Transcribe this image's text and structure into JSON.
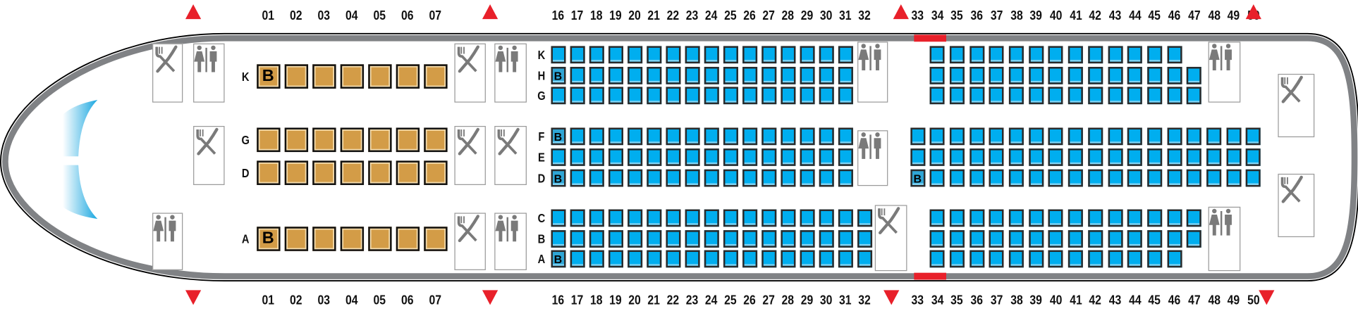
{
  "colors": {
    "economy_seat": "#00aeef",
    "business_seat": "#d39c47",
    "exit": "#e8202a",
    "fuselage": "#808285",
    "windshield": "#1aa7e0"
  },
  "column_labels": {
    "business": [
      "01",
      "02",
      "03",
      "04",
      "05",
      "06",
      "07"
    ],
    "economy_forward": [
      "16",
      "17",
      "18",
      "19",
      "20",
      "21",
      "22",
      "23",
      "24",
      "25",
      "26",
      "27",
      "28",
      "29",
      "30",
      "31",
      "32"
    ],
    "economy_rear": [
      "33",
      "34",
      "35",
      "36",
      "37",
      "38",
      "39",
      "40",
      "41",
      "42",
      "43",
      "44",
      "45",
      "46",
      "47",
      "48",
      "49",
      "50"
    ]
  },
  "bassinet_mark": "B",
  "business": {
    "rows": [
      {
        "letter": "K",
        "from": 1,
        "to": 7,
        "bassinet": [
          1
        ]
      },
      {
        "letter": "G",
        "from": 1,
        "to": 7,
        "bassinet": []
      },
      {
        "letter": "D",
        "from": 1,
        "to": 7,
        "bassinet": []
      },
      {
        "letter": "A",
        "from": 1,
        "to": 7,
        "bassinet": [
          1
        ]
      }
    ]
  },
  "economy_forward": {
    "rows": [
      {
        "letter": "K",
        "from": 16,
        "to": 31,
        "bassinet": []
      },
      {
        "letter": "H",
        "from": 16,
        "to": 31,
        "bassinet": [
          16
        ]
      },
      {
        "letter": "G",
        "from": 16,
        "to": 31,
        "bassinet": []
      },
      {
        "letter": "F",
        "from": 16,
        "to": 31,
        "bassinet": [
          16
        ]
      },
      {
        "letter": "E",
        "from": 16,
        "to": 31,
        "bassinet": []
      },
      {
        "letter": "D",
        "from": 16,
        "to": 31,
        "bassinet": [
          16
        ]
      },
      {
        "letter": "C",
        "from": 16,
        "to": 32,
        "bassinet": []
      },
      {
        "letter": "B",
        "from": 16,
        "to": 32,
        "bassinet": []
      },
      {
        "letter": "A",
        "from": 16,
        "to": 32,
        "bassinet": [
          16
        ]
      }
    ]
  },
  "economy_rear": {
    "rows": [
      {
        "from": 34,
        "to": 46,
        "bassinet": []
      },
      {
        "from": 34,
        "to": 47,
        "bassinet": []
      },
      {
        "from": 34,
        "to": 47,
        "bassinet": []
      },
      {
        "from": 33,
        "to": 50,
        "bassinet": []
      },
      {
        "from": 33,
        "to": 50,
        "bassinet": []
      },
      {
        "from": 33,
        "to": 50,
        "bassinet": [
          33
        ]
      },
      {
        "from": 34,
        "to": 47,
        "bassinet": []
      },
      {
        "from": 34,
        "to": 47,
        "bassinet": []
      },
      {
        "from": 34,
        "to": 46,
        "bassinet": []
      }
    ]
  },
  "facilities": [
    "galley",
    "lavatory",
    "galley",
    "lavatory",
    "galley",
    "galley",
    "galley",
    "lavatory",
    "galley",
    "lavatory",
    "lavatory",
    "lavatory",
    "galley",
    "lavatory",
    "lavatory",
    "galley",
    "galley"
  ],
  "exits": [
    "exit-door",
    "exit-door",
    "exit-door",
    "exit-door"
  ]
}
